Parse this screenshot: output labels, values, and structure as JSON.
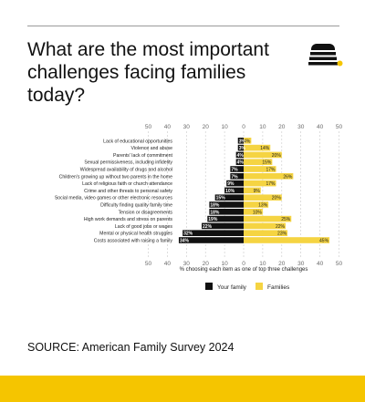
{
  "header": {
    "title": "What are the most important challenges facing families today?"
  },
  "footer": {
    "source": "SOURCE: American Family Survey 2024"
  },
  "logo": {
    "icon": "beehive-logo-icon"
  },
  "colors": {
    "your_family": "#111111",
    "families": "#f5d442",
    "accent": "#f5c500",
    "axis_text": "#6a6a6a"
  },
  "chart_data": {
    "type": "bar",
    "orientation": "horizontal-diverging",
    "xlabel": "% choosing each item as one of top three challenges",
    "xlim_left": [
      50,
      0
    ],
    "xlim_right": [
      0,
      50
    ],
    "ticks": [
      50,
      40,
      30,
      20,
      10,
      0,
      10,
      20,
      30,
      40,
      50
    ],
    "legend_position": "bottom",
    "categories": [
      "Lack of educational opportunities",
      "Violence and abuse",
      "Parents' lack of commitment",
      "Sexual permissiveness, including infidelity",
      "Widespread availability of drugs and alcohol",
      "Children's growing up without two parents in the home",
      "Lack of religious faith or church attendance",
      "Crime and other threats to personal safety",
      "Social media, video games or other electronic resources",
      "Difficulty finding quality family time",
      "Tension or disagreements",
      "High work demands and stress on parents",
      "Lack of good jobs or wages",
      "Mental or physical health struggles",
      "Costs associated with raising a family"
    ],
    "series": [
      {
        "name": "Your family",
        "values": [
          3,
          3,
          4,
          4,
          7,
          7,
          9,
          10,
          15,
          18,
          18,
          19,
          22,
          32,
          34
        ]
      },
      {
        "name": "Families",
        "values": [
          4,
          14,
          20,
          15,
          17,
          26,
          17,
          9,
          20,
          13,
          10,
          25,
          22,
          23,
          45
        ]
      }
    ]
  }
}
